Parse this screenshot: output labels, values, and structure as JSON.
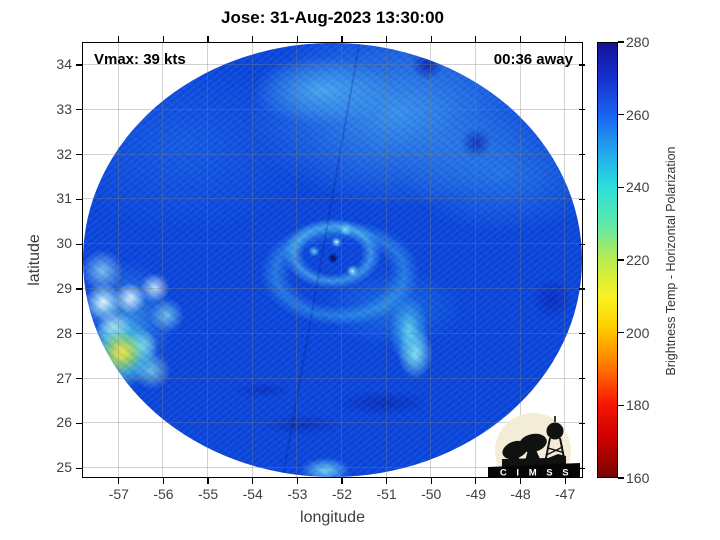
{
  "figure": {
    "title": "Jose: 31-Aug-2023 13:30:00"
  },
  "chart_data": {
    "type": "heatmap",
    "title": "Jose: 31-Aug-2023 13:30:00",
    "storm_name": "Jose",
    "timestamp": "31-Aug-2023 13:30:00",
    "annotations": {
      "vmax": "Vmax: 39 kts",
      "time_offset": "00:36 away"
    },
    "xlabel": "longitude",
    "ylabel": "latitude",
    "xlim": [
      -57.78,
      -46.6
    ],
    "ylim": [
      24.78,
      34.47
    ],
    "xticks": [
      -57,
      -56,
      -55,
      -54,
      -53,
      -52,
      -51,
      -50,
      -49,
      -48,
      -47
    ],
    "yticks": [
      25,
      26,
      27,
      28,
      29,
      30,
      31,
      32,
      33,
      34
    ],
    "grid": true,
    "colorbar": {
      "label": "Brightness Temp - Horizontal Polarization",
      "min": 160,
      "max": 280,
      "ticks": [
        160,
        180,
        200,
        220,
        240,
        260,
        280
      ],
      "stops": [
        [
          160,
          "#7a0403"
        ],
        [
          170,
          "#c80000"
        ],
        [
          180,
          "#f51500"
        ],
        [
          192,
          "#ff8400"
        ],
        [
          202,
          "#ffd200"
        ],
        [
          210,
          "#f8f223"
        ],
        [
          220,
          "#b9ec4e"
        ],
        [
          230,
          "#5fe8ab"
        ],
        [
          240,
          "#2bdfdc"
        ],
        [
          250,
          "#23a5ea"
        ],
        [
          260,
          "#1b64f2"
        ],
        [
          270,
          "#1531cf"
        ],
        [
          280,
          "#161096"
        ]
      ]
    },
    "swath": {
      "shape": "ellipse",
      "center_lon": -52.2,
      "center_lat": 29.6,
      "radius_lon_deg": 5.6,
      "radius_lat_deg": 4.85,
      "background_temp_K": 258
    },
    "features": [
      {
        "name": "storm-center-eye",
        "lon": -52.2,
        "lat": 29.7,
        "approx_temp_K": 252
      },
      {
        "name": "inner-core-convective-dots",
        "lon": -52.1,
        "lat": 29.9,
        "approx_temp_K": 235
      },
      {
        "name": "rainband-southeast",
        "lon": -50.5,
        "lat": 27.9,
        "approx_temp_K": 235
      },
      {
        "name": "strong-convection-west",
        "lon": -57.0,
        "lat": 27.6,
        "approx_temp_K": 205
      },
      {
        "name": "convective-cluster-west",
        "lon": -56.5,
        "lat": 28.4,
        "approx_temp_K": 225
      },
      {
        "name": "light-cell-south",
        "lon": -52.3,
        "lat": 25.0,
        "approx_temp_K": 240
      }
    ]
  },
  "logo": {
    "text": "C I M S S"
  }
}
